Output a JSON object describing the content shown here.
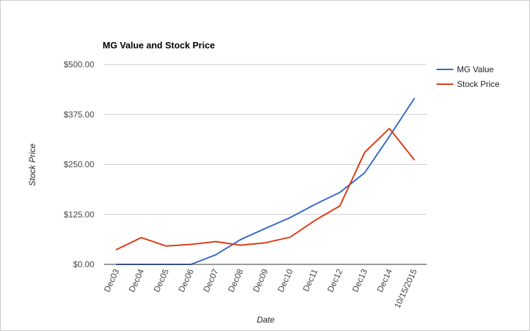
{
  "chart_data": {
    "type": "line",
    "title": "MG Value and Stock Price",
    "xlabel": "Date",
    "ylabel": "Stock Price",
    "categories": [
      "Dec03",
      "Dec04",
      "Dec05",
      "Dec06",
      "Dec07",
      "Dec08",
      "Dec09",
      "Dec10",
      "Dec11",
      "Dec12",
      "Dec13",
      "Dec14",
      "10/15/2015"
    ],
    "y_ticks": [
      "$0.00",
      "$125.00",
      "$250.00",
      "$375.00",
      "$500.00"
    ],
    "ylim": [
      0,
      500
    ],
    "grid": true,
    "legend_position": "right",
    "series": [
      {
        "name": "MG Value",
        "color": "#3366cc",
        "values": [
          0,
          0,
          0,
          0,
          24,
          62,
          90,
          117,
          150,
          180,
          229,
          320,
          415
        ]
      },
      {
        "name": "Stock Price",
        "color": "#dc3912",
        "values": [
          37,
          67,
          46,
          50,
          57,
          48,
          54,
          68,
          110,
          146,
          280,
          340,
          262
        ]
      }
    ]
  }
}
